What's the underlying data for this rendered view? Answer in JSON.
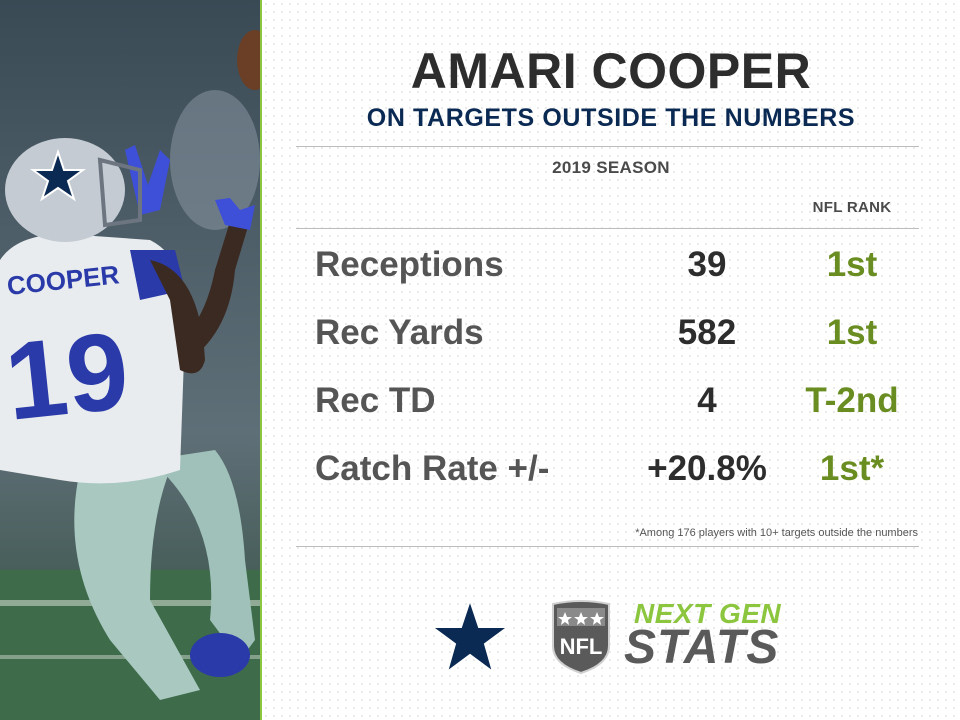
{
  "photo": {
    "jersey_name": "COOPER",
    "jersey_number": "19"
  },
  "header": {
    "title": "AMARI COOPER",
    "subtitle": "ON TARGETS OUTSIDE THE NUMBERS"
  },
  "season_label": "2019 SEASON",
  "rank_header": "NFL RANK",
  "stats": [
    {
      "label": "Receptions",
      "value": "39",
      "rank": "1st"
    },
    {
      "label": "Rec Yards",
      "value": "582",
      "rank": "1st"
    },
    {
      "label": "Rec TD",
      "value": "4",
      "rank": "T-2nd"
    },
    {
      "label": "Catch Rate +/-",
      "value": "+20.8%",
      "rank": "1st*"
    }
  ],
  "footnote": "*Among 176 players with 10+ targets outside the numbers",
  "logos": {
    "team": "cowboys-star-icon",
    "league": "nfl-shield-icon",
    "league_text": "NFL",
    "brand_line1": "NEXT GEN",
    "brand_line2": "STATS"
  },
  "colors": {
    "accent_green": "#8cc63f",
    "rank_green": "#6a8d22",
    "navy": "#0b2a53",
    "title_dark": "#2d2d2d"
  }
}
